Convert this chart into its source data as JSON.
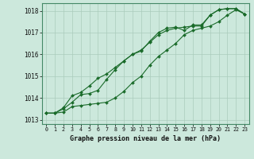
{
  "xlabel": "Graphe pression niveau de la mer (hPa)",
  "background_color": "#cce8dc",
  "grid_color": "#aaccbb",
  "line_color": "#1a6b2a",
  "xlim": [
    -0.5,
    23.5
  ],
  "ylim": [
    1012.8,
    1018.35
  ],
  "yticks": [
    1013,
    1014,
    1015,
    1016,
    1017,
    1018
  ],
  "xticks": [
    0,
    1,
    2,
    3,
    4,
    5,
    6,
    7,
    8,
    9,
    10,
    11,
    12,
    13,
    14,
    15,
    16,
    17,
    18,
    19,
    20,
    21,
    22,
    23
  ],
  "series": [
    [
      1013.3,
      1013.3,
      1013.35,
      1013.6,
      1013.65,
      1013.7,
      1013.75,
      1013.8,
      1014.0,
      1014.3,
      1014.7,
      1015.0,
      1015.5,
      1015.9,
      1016.2,
      1016.5,
      1016.9,
      1017.1,
      1017.2,
      1017.3,
      1017.5,
      1017.8,
      1018.05,
      1017.85
    ],
    [
      1013.3,
      1013.3,
      1013.55,
      1014.1,
      1014.25,
      1014.55,
      1014.9,
      1015.1,
      1015.4,
      1015.7,
      1016.0,
      1016.2,
      1016.55,
      1016.9,
      1017.1,
      1017.2,
      1017.25,
      1017.3,
      1017.3,
      1017.8,
      1018.05,
      1018.1,
      1018.1,
      1017.85
    ],
    [
      1013.3,
      1013.3,
      1013.5,
      1013.8,
      1014.15,
      1014.2,
      1014.35,
      1014.85,
      1015.3,
      1015.7,
      1016.0,
      1016.15,
      1016.6,
      1017.0,
      1017.2,
      1017.25,
      1017.1,
      1017.35,
      1017.35,
      1017.8,
      1018.05,
      1018.1,
      1018.1,
      1017.85
    ]
  ]
}
